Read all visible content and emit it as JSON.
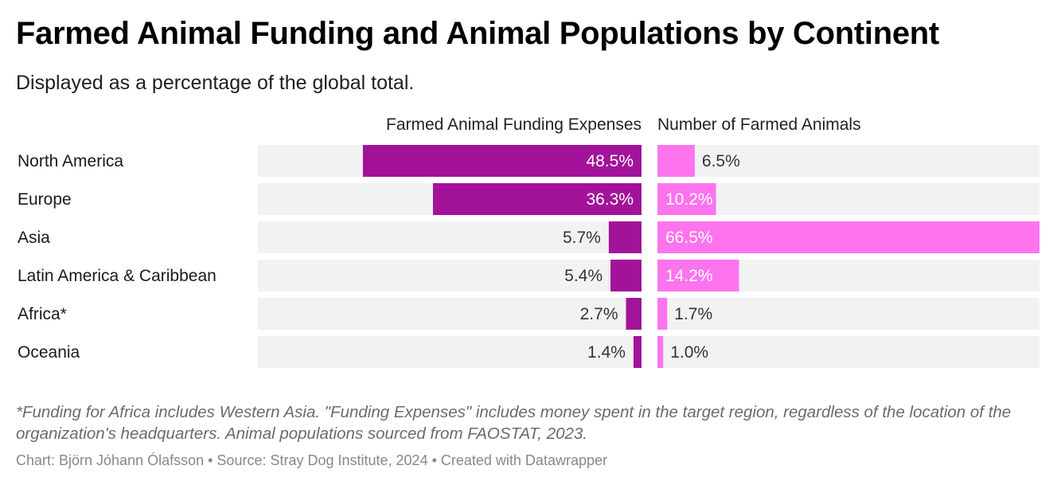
{
  "title": "Farmed Animal Funding and Animal Populations by Continent",
  "subtitle": "Displayed as a percentage of the global total.",
  "footnote": "*Funding for Africa includes Western Asia. \"Funding Expenses\" includes money spent in the target region, regardless of the location of the organization's headquarters. Animal populations sourced from FAOSTAT, 2023.",
  "credits": "Chart: Björn Jóhann Ólafsson • Source: Stray Dog Institute, 2024 • Created with Datawrapper",
  "colors": {
    "funding": "#a2139a",
    "animals": "#fd74ee",
    "track": "#f2f2f2",
    "label_dark": "#333333",
    "label_on_bar": "#ffffff"
  },
  "chart_data": {
    "type": "bar",
    "orientation": "horizontal",
    "categories": [
      "North America",
      "Europe",
      "Asia",
      "Latin America & Caribbean",
      "Africa*",
      "Oceania"
    ],
    "series": [
      {
        "name": "Farmed Animal Funding Expenses",
        "values": [
          48.5,
          36.3,
          5.7,
          5.4,
          2.7,
          1.4
        ],
        "labels": [
          "48.5%",
          "36.3%",
          "5.7%",
          "5.4%",
          "2.7%",
          "1.4%"
        ],
        "direction": "right-to-left"
      },
      {
        "name": "Number of Farmed Animals",
        "values": [
          6.5,
          10.2,
          66.5,
          14.2,
          1.7,
          1.0
        ],
        "labels": [
          "6.5%",
          "10.2%",
          "66.5%",
          "14.2%",
          "1.7%",
          "1.0%"
        ],
        "direction": "left-to-right"
      }
    ],
    "unit": "%",
    "xlim": [
      0,
      66.5
    ]
  }
}
